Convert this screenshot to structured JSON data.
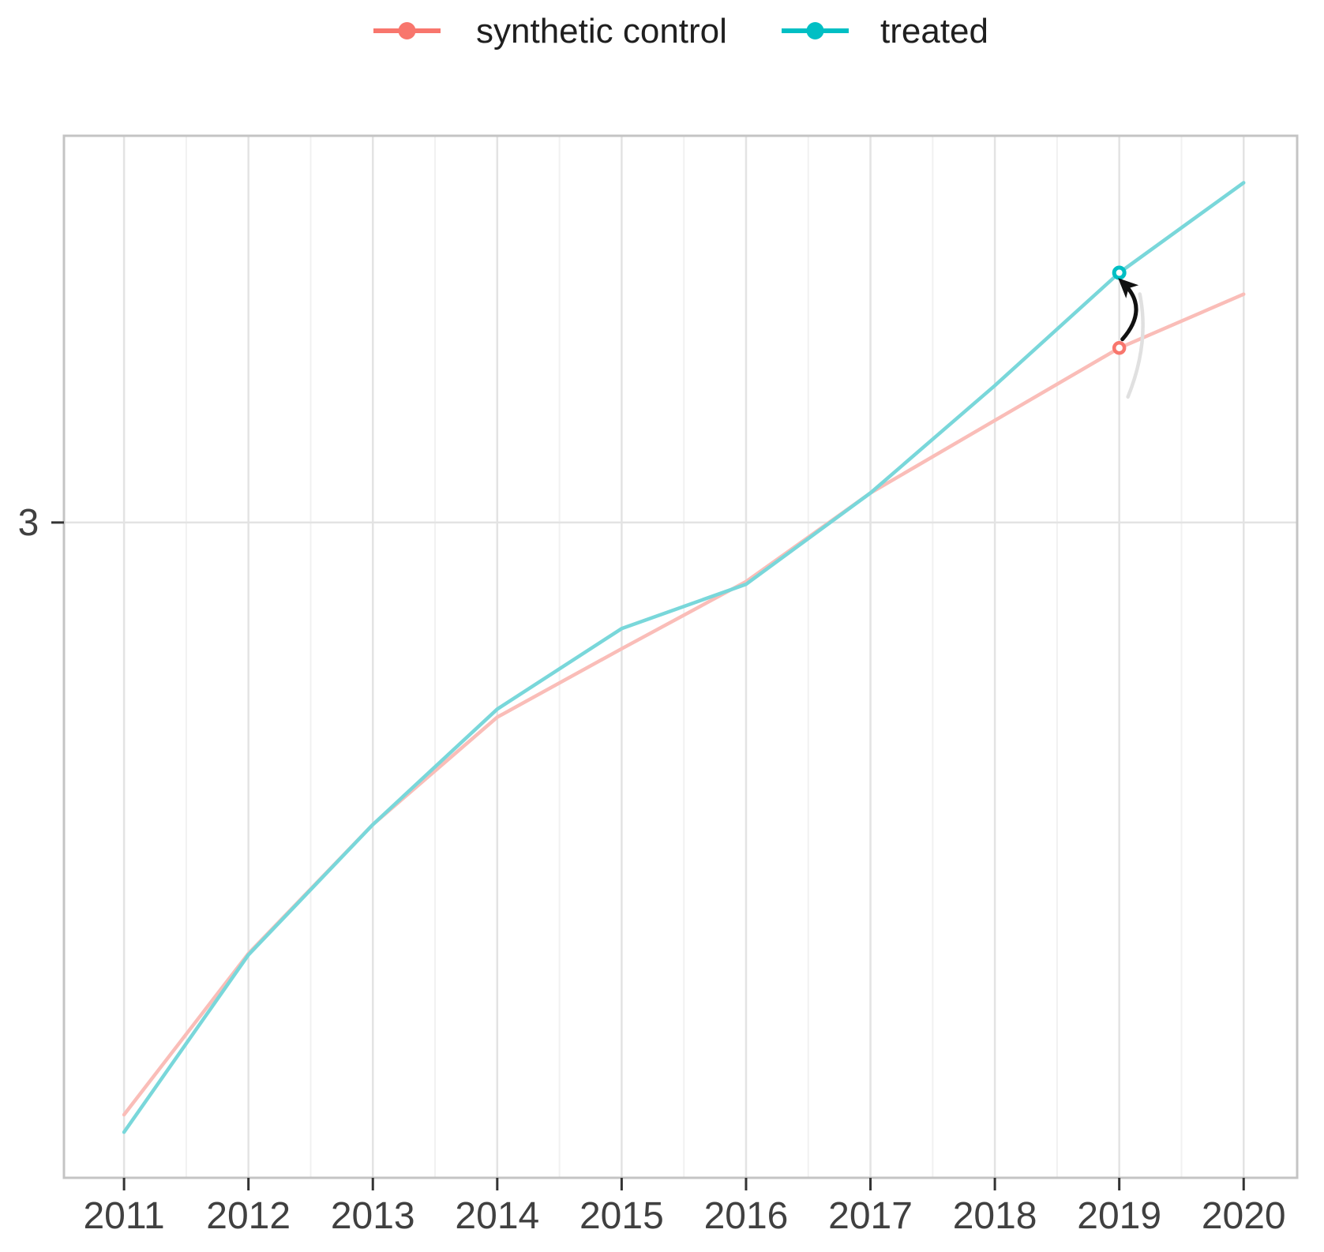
{
  "page": {
    "background": "#ffffff",
    "title": ""
  },
  "chart_data": {
    "type": "line",
    "title": "",
    "xlabel": "",
    "ylabel": "",
    "x": [
      2011,
      2012,
      2013,
      2014,
      2015,
      2016,
      2017,
      2018,
      2019,
      2020
    ],
    "x_tick_labels": [
      "2011",
      "2012",
      "2013",
      "2014",
      "2015",
      "2016",
      "2017",
      "2018",
      "2019",
      "2020"
    ],
    "y_ticks": [
      {
        "value": 3,
        "label": "3"
      }
    ],
    "xlim": [
      2010.517,
      2020.43
    ],
    "ylim": [
      2.512,
      3.288
    ],
    "grid": {
      "vertical_major": true,
      "vertical_minor": true,
      "horizontal_major": true,
      "horizontal_minor": false,
      "major_color": "#e3e3e3",
      "minor_color": "#f1f1f1",
      "panel_border_color": "#c4c4c4",
      "tick_color": "#333333"
    },
    "legend_position": "top-center",
    "series": [
      {
        "name": "synthetic control",
        "key_color": "#F8766D",
        "line_color": "#FABDB8",
        "values": [
          2.559,
          2.679,
          2.775,
          2.855,
          2.906,
          2.956,
          3.022,
          3.076,
          3.13,
          3.17
        ]
      },
      {
        "name": "treated",
        "key_color": "#00BFC4",
        "line_color": "#79D7DA",
        "values": [
          2.546,
          2.678,
          2.775,
          2.861,
          2.921,
          2.954,
          3.022,
          3.102,
          3.186,
          3.253
        ]
      }
    ],
    "marked_year": 2019,
    "marked_points": [
      {
        "series": "treated",
        "year": 2019,
        "value": 3.186
      },
      {
        "series": "synthetic control",
        "year": 2019,
        "value": 3.13
      }
    ],
    "annotation": {
      "type": "arrow",
      "description": "black curved arrow pointing from the synthetic control 2019 point up to the treated 2019 point, with a faint gray curve beside it",
      "from_series": "synthetic control",
      "to_series": "treated",
      "year": 2019,
      "arrow_color": "#111111",
      "shadow_curve_color": "#e0e0e0"
    }
  }
}
